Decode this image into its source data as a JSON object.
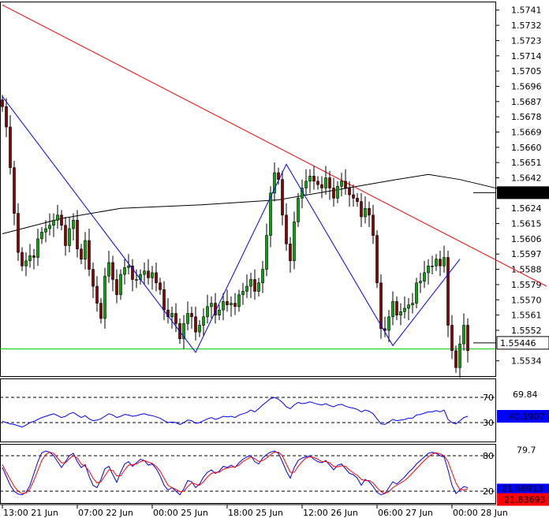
{
  "chart_data": [
    {
      "type": "candlestick",
      "pane": "price",
      "ylim": [
        1.5525,
        1.5746
      ],
      "y_ticks": [
        "1.5741",
        "1.5732",
        "1.5723",
        "1.5714",
        "1.5705",
        "1.5696",
        "1.5687",
        "1.5678",
        "1.5669",
        "1.5660",
        "1.5651",
        "1.5642",
        "1.5624",
        "1.5615",
        "1.5606",
        "1.5597",
        "1.5588",
        "1.5579",
        "1.5570",
        "1.5561",
        "1.5552",
        "1.5534"
      ],
      "price_labels": {
        "moving_average": "1.563324",
        "current": "1.55446"
      },
      "levels": {
        "moving_average": 1.563324,
        "current": 1.55446,
        "support": 1.5541
      },
      "trendline": {
        "from": [
          0,
          1.5744
        ],
        "to": [
          138,
          1.5578
        ],
        "color": "#ff0000"
      },
      "zigzag": {
        "color": "#0000ff",
        "points": [
          [
            0,
            1.569
          ],
          [
            49,
            1.5539
          ],
          [
            72,
            1.565
          ],
          [
            99,
            1.5543
          ],
          [
            116,
            1.5594
          ]
        ]
      },
      "moving_average_line": [
        [
          0,
          1.5609
        ],
        [
          15,
          1.5618
        ],
        [
          30,
          1.5624
        ],
        [
          50,
          1.5626
        ],
        [
          70,
          1.5629
        ],
        [
          85,
          1.5635
        ],
        [
          100,
          1.5641
        ],
        [
          108,
          1.5644
        ],
        [
          116,
          1.5641
        ],
        [
          125,
          1.5636
        ],
        [
          132,
          1.5633
        ]
      ],
      "candles_close": [
        1.5684,
        1.5672,
        1.5648,
        1.5621,
        1.5598,
        1.559,
        1.5593,
        1.5596,
        1.5595,
        1.5606,
        1.561,
        1.5612,
        1.5614,
        1.5617,
        1.562,
        1.5614,
        1.5602,
        1.5612,
        1.5617,
        1.56,
        1.5594,
        1.5605,
        1.5588,
        1.5578,
        1.5568,
        1.5559,
        1.5584,
        1.5592,
        1.5582,
        1.5573,
        1.5585,
        1.5589,
        1.559,
        1.5582,
        1.5582,
        1.5585,
        1.5587,
        1.5583,
        1.5586,
        1.558,
        1.5576,
        1.5564,
        1.556,
        1.5562,
        1.5556,
        1.5547,
        1.5556,
        1.5562,
        1.556,
        1.5551,
        1.5555,
        1.556,
        1.5566,
        1.5568,
        1.5561,
        1.5564,
        1.5569,
        1.5567,
        1.5568,
        1.5566,
        1.5573,
        1.5575,
        1.5578,
        1.5582,
        1.5575,
        1.558,
        1.5588,
        1.5608,
        1.5633,
        1.5645,
        1.5641,
        1.562,
        1.5603,
        1.5593,
        1.5616,
        1.563,
        1.5636,
        1.564,
        1.5643,
        1.564,
        1.5638,
        1.5636,
        1.5642,
        1.5636,
        1.563,
        1.5637,
        1.564,
        1.5636,
        1.5632,
        1.563,
        1.5628,
        1.5619,
        1.5624,
        1.562,
        1.5608,
        1.558,
        1.5553,
        1.5552,
        1.556,
        1.5569,
        1.5561,
        1.5563,
        1.5565,
        1.5567,
        1.5568,
        1.558,
        1.5581,
        1.5586,
        1.559,
        1.559,
        1.5594,
        1.559,
        1.5595,
        1.5555,
        1.554,
        1.553,
        1.5544,
        1.5555,
        1.554
      ],
      "x_tick_labels": [
        "13:00 21 Jun",
        "07:00 22 Jun",
        "00:00 25 Jun",
        "18:00 25 Jun",
        "12:00 26 Jun",
        "06:00 27 Jun",
        "00:00 28 Jun"
      ],
      "x_tick_index": [
        0,
        19,
        38,
        57,
        76,
        95,
        114
      ]
    },
    {
      "type": "line",
      "pane": "rsi",
      "ylim": [
        0,
        100
      ],
      "levels": [
        70,
        30
      ],
      "level_labels": [
        "70",
        "30"
      ],
      "readouts": [
        "69.84",
        "40.1907"
      ],
      "values": [
        32,
        30,
        28,
        27,
        25,
        23,
        26,
        30,
        32,
        35,
        38,
        40,
        42,
        44,
        41,
        38,
        40,
        44,
        46,
        42,
        38,
        41,
        36,
        33,
        34,
        36,
        40,
        44,
        42,
        38,
        40,
        43,
        42,
        40,
        41,
        43,
        44,
        42,
        41,
        39,
        37,
        33,
        30,
        31,
        30,
        27,
        30,
        34,
        33,
        29,
        30,
        33,
        36,
        38,
        35,
        37,
        40,
        39,
        40,
        38,
        42,
        44,
        46,
        50,
        47,
        52,
        58,
        63,
        68,
        70,
        67,
        62,
        55,
        52,
        58,
        62,
        60,
        61,
        63,
        61,
        59,
        58,
        60,
        57,
        55,
        58,
        59,
        56,
        54,
        53,
        51,
        47,
        50,
        48,
        44,
        36,
        28,
        27,
        31,
        35,
        33,
        34,
        35,
        37,
        37,
        42,
        43,
        45,
        47,
        47,
        49,
        47,
        50,
        35,
        30,
        28,
        33,
        38,
        40
      ]
    },
    {
      "type": "line",
      "pane": "stochastic",
      "ylim": [
        0,
        100
      ],
      "levels": [
        80,
        20
      ],
      "level_labels": [
        "80",
        "20"
      ],
      "readouts": [
        "79.7",
        "21.83693"
      ],
      "readout_hidden": "21.58913",
      "series": [
        {
          "name": "%K",
          "color": "#0000ff",
          "values": [
            60,
            45,
            30,
            20,
            15,
            14,
            18,
            30,
            50,
            70,
            85,
            88,
            86,
            80,
            70,
            60,
            70,
            80,
            84,
            70,
            60,
            65,
            45,
            30,
            26,
            40,
            58,
            62,
            48,
            35,
            52,
            66,
            70,
            62,
            68,
            74,
            72,
            64,
            66,
            58,
            46,
            30,
            22,
            26,
            20,
            14,
            24,
            38,
            36,
            26,
            32,
            44,
            52,
            56,
            50,
            54,
            62,
            60,
            64,
            60,
            68,
            74,
            78,
            80,
            70,
            66,
            76,
            82,
            86,
            88,
            84,
            70,
            54,
            42,
            60,
            72,
            76,
            78,
            80,
            74,
            70,
            68,
            72,
            64,
            56,
            64,
            66,
            58,
            50,
            48,
            42,
            30,
            40,
            36,
            28,
            18,
            14,
            16,
            26,
            36,
            32,
            38,
            44,
            52,
            58,
            66,
            72,
            78,
            84,
            86,
            84,
            80,
            78,
            56,
            30,
            16,
            22,
            28,
            26
          ]
        },
        {
          "name": "%D",
          "color": "#ff0000",
          "values": [
            65,
            52,
            40,
            28,
            20,
            16,
            17,
            24,
            38,
            55,
            72,
            82,
            86,
            84,
            76,
            68,
            68,
            75,
            80,
            76,
            66,
            62,
            54,
            42,
            34,
            36,
            46,
            56,
            55,
            46,
            46,
            56,
            64,
            65,
            66,
            70,
            72,
            69,
            67,
            62,
            54,
            42,
            30,
            26,
            23,
            19,
            20,
            28,
            34,
            32,
            30,
            36,
            44,
            50,
            52,
            52,
            57,
            59,
            61,
            61,
            64,
            70,
            74,
            78,
            75,
            70,
            72,
            76,
            82,
            86,
            86,
            80,
            66,
            52,
            52,
            62,
            70,
            76,
            78,
            77,
            74,
            70,
            70,
            68,
            62,
            61,
            63,
            62,
            56,
            51,
            47,
            40,
            38,
            38,
            34,
            26,
            19,
            16,
            19,
            26,
            30,
            34,
            38,
            44,
            51,
            58,
            65,
            72,
            78,
            83,
            85,
            83,
            80,
            70,
            52,
            34,
            23,
            22,
            24
          ]
        }
      ]
    }
  ]
}
